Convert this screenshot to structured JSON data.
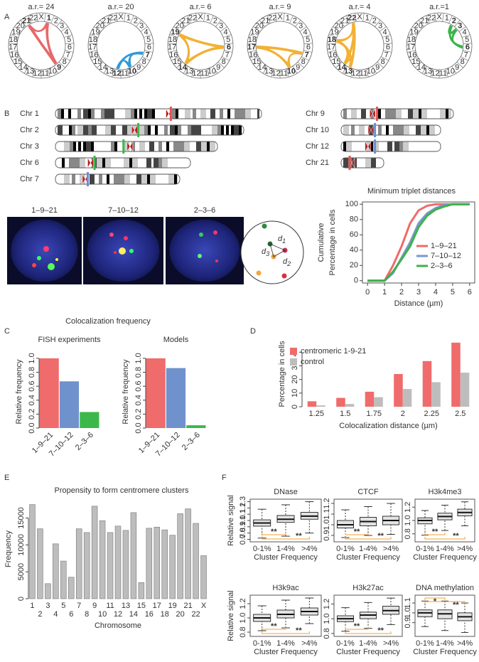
{
  "panel_labels": [
    "A",
    "B",
    "C",
    "D",
    "E",
    "F"
  ],
  "chromosomes": [
    "1",
    "2",
    "3",
    "4",
    "5",
    "6",
    "7",
    "8",
    "9",
    "10",
    "11",
    "12",
    "13",
    "14",
    "15",
    "16",
    "17",
    "18",
    "19",
    "20",
    "21",
    "22",
    "X"
  ],
  "highlight_color": "#c1272d",
  "circos": [
    {
      "label": "a.r.= 24",
      "highlight": [
        "1",
        "9",
        "21"
      ],
      "color": "#e8686a"
    },
    {
      "label": "a.r.= 20",
      "highlight": [
        "7",
        "10",
        "12"
      ],
      "color": "#2e9bd6"
    },
    {
      "label": "a.r.= 6",
      "highlight": [
        "6",
        "14",
        "19"
      ],
      "color": "#f2b134"
    },
    {
      "label": "a.r.= 9",
      "highlight": [
        "7",
        "10",
        "17"
      ],
      "color": "#f2b134"
    },
    {
      "label": "a.r.= 4",
      "highlight": [
        "13",
        "14",
        "18",
        "22"
      ],
      "color": "#f2b134"
    },
    {
      "label": "a.r.=1",
      "highlight": [
        "2",
        "3",
        "6"
      ],
      "color": "#39b54a"
    }
  ],
  "ideograms": [
    {
      "label": "Chr 1",
      "marker": "#e8504f"
    },
    {
      "label": "Chr 2",
      "marker": "#3cb84a"
    },
    {
      "label": "Chr 3",
      "marker": "#3cb84a"
    },
    {
      "label": "Chr 6",
      "marker": "#3cb84a"
    },
    {
      "label": "Chr 7",
      "marker": "#6b8fd0"
    },
    {
      "label": "Chr 9",
      "marker": "#e8504f"
    },
    {
      "label": "Chr 10",
      "marker": "#6b8fd0"
    },
    {
      "label": "Chr 12",
      "marker": "#6b8fd0"
    },
    {
      "label": "Chr 21",
      "marker": "#e8504f"
    }
  ],
  "images": [
    {
      "label": "1–9–21"
    },
    {
      "label": "7–10–12"
    },
    {
      "label": "2–3–6"
    }
  ],
  "diagram": {
    "labels": [
      {
        "text": "d",
        "sub": "1"
      },
      {
        "text": "d",
        "sub": "2"
      },
      {
        "text": "d",
        "sub": "3"
      }
    ]
  },
  "chart_data": [
    {
      "type": "line",
      "title": "Minimum triplet distances",
      "xlabel": "Distance (µm)",
      "ylabel": [
        "Cumulative",
        "Percentage in cells"
      ],
      "x": [
        0,
        1,
        1.5,
        2,
        2.5,
        3,
        3.5,
        4,
        4.5,
        5,
        5.5,
        6
      ],
      "series": [
        {
          "name": "1–9–21",
          "color": "#ef6a6a",
          "values": [
            0,
            0,
            20,
            45,
            75,
            92,
            98,
            100,
            100,
            100,
            100,
            100
          ]
        },
        {
          "name": "7–10–12",
          "color": "#7a96d0",
          "values": [
            0,
            0,
            10,
            30,
            50,
            75,
            88,
            95,
            99,
            100,
            100,
            100
          ]
        },
        {
          "name": "2–3–6",
          "color": "#3db34a",
          "values": [
            0,
            0,
            12,
            28,
            45,
            70,
            85,
            93,
            97,
            100,
            100,
            100
          ]
        }
      ],
      "xlim": [
        -0.3,
        6.3
      ],
      "xticks": [
        0,
        1,
        2,
        3,
        4,
        5,
        6
      ],
      "ylim": [
        -3,
        103
      ],
      "yticks": [
        0,
        20,
        40,
        60,
        80,
        100
      ],
      "legend": "right"
    },
    {
      "type": "bar",
      "title": "Colocalization frequency",
      "subtitle": "FISH experiments",
      "ylabel": "Relative frequency",
      "categories": [
        "1–9–21",
        "7–10–12",
        "2–3–6"
      ],
      "values": [
        1.0,
        0.67,
        0.23
      ],
      "colors": [
        "#f06b6b",
        "#7092cc",
        "#3cb84a"
      ],
      "xtick_rotation": -45,
      "ylim": [
        0,
        1.04
      ],
      "yticks": [
        {
          "value": 0,
          "label": "0.0"
        },
        0.2,
        0.4,
        0.6,
        0.8,
        {
          "value": 1,
          "label": "1.0"
        }
      ]
    },
    {
      "type": "bar",
      "subtitle": "Models",
      "ylabel": "Relative frequency",
      "categories": [
        "1–9–21",
        "7–10–12",
        "2–3–6"
      ],
      "values": [
        1.0,
        0.86,
        0.04
      ],
      "colors": [
        "#f06b6b",
        "#7092cc",
        "#3cb84a"
      ],
      "xtick_rotation": -45,
      "ylim": [
        0,
        1.04
      ],
      "yticks": [
        {
          "value": 0,
          "label": "0.0"
        },
        0.2,
        0.4,
        0.6,
        0.8,
        {
          "value": 1,
          "label": "1.0"
        }
      ]
    },
    {
      "type": "bar",
      "ylabel": "Percentage in cells",
      "xlabel": "Colocalization distance (µm)",
      "categories": [
        "1.25",
        "1.5",
        "1.75",
        "2",
        "2.25",
        "2.5"
      ],
      "series": [
        {
          "name": "centromeric 1-9-21",
          "color": "#f06b6b",
          "values": [
            4,
            6.5,
            11,
            24,
            33.5,
            47
          ]
        },
        {
          "name": "control",
          "color": "#bdbdbd",
          "values": [
            1,
            2,
            7,
            13,
            18,
            25
          ]
        }
      ],
      "ylim": [
        0,
        48
      ],
      "yticks": [
        0,
        10,
        20,
        30,
        40
      ],
      "legend": "top-left"
    },
    {
      "type": "bar",
      "title": "Propensity to form centromere clusters",
      "ylabel": "Frequency",
      "xlabel": "Chromosome",
      "categories": [
        "1",
        "2",
        "3",
        "4",
        "5",
        "6",
        "7",
        "8",
        "9",
        "10",
        "11",
        "12",
        "13",
        "14",
        "15",
        "16",
        "17",
        "18",
        "19",
        "20",
        "21",
        "22",
        "X"
      ],
      "values": [
        17500,
        13000,
        2800,
        10200,
        7000,
        4000,
        13000,
        12300,
        17200,
        14500,
        12300,
        13500,
        12700,
        16000,
        3000,
        13100,
        13300,
        12800,
        11800,
        15800,
        16700,
        14000,
        8000
      ],
      "color": "#bdbdbd",
      "xtick_rows": 2,
      "ylim": [
        0,
        18500
      ],
      "yticks": [
        0,
        5000,
        10000,
        15000
      ]
    },
    {
      "type": "box",
      "title": "DNase",
      "ylabel": "Relative  signal",
      "xlabel": "Cluster Frequency",
      "categories": [
        "0-1%",
        "1-4%",
        ">4%"
      ],
      "boxes": [
        {
          "whislo": 0.72,
          "q1": 0.91,
          "med": 0.96,
          "q3": 1.01,
          "whishi": 1.18
        },
        {
          "whislo": 0.75,
          "q1": 0.97,
          "med": 1.02,
          "q3": 1.08,
          "whishi": 1.25
        },
        {
          "whislo": 0.8,
          "q1": 1.02,
          "med": 1.07,
          "q3": 1.13,
          "whishi": 1.3
        }
      ],
      "color": "#e3e3e3",
      "annotations": [
        "**",
        "**"
      ],
      "annotation_position": "bottom",
      "annotation_color": "#f0a030",
      "ylim": [
        0.66,
        1.34
      ],
      "yticks": [
        0.7,
        0.8,
        0.9,
        {
          "value": 1,
          "label": "1.0"
        },
        1.1,
        1.2,
        1.3
      ]
    },
    {
      "type": "box",
      "title": "CTCF",
      "xlabel": "Cluster Frequency",
      "categories": [
        "0-1%",
        "1-4%",
        ">4%"
      ],
      "boxes": [
        {
          "whislo": 0.88,
          "q1": 0.97,
          "med": 1.0,
          "q3": 1.04,
          "whishi": 1.14
        },
        {
          "whislo": 0.9,
          "q1": 0.99,
          "med": 1.03,
          "q3": 1.07,
          "whishi": 1.17
        },
        {
          "whislo": 0.91,
          "q1": 1.0,
          "med": 1.04,
          "q3": 1.08,
          "whishi": 1.2
        }
      ],
      "color": "#e3e3e3",
      "annotations": [
        "**",
        "**"
      ],
      "annotation_position": "bottom",
      "annotation_color": "#f0a030",
      "ylim": [
        0.84,
        1.24
      ],
      "yticks": [
        0.9,
        {
          "value": 1,
          "label": "1.0"
        },
        1.1,
        1.2
      ]
    },
    {
      "type": "box",
      "title": "H3k4me3",
      "xlabel": "Cluster Frequency",
      "categories": [
        "0-1%",
        "1-4%",
        ">4%"
      ],
      "boxes": [
        {
          "whislo": 0.78,
          "q1": 0.95,
          "med": 1.0,
          "q3": 1.04,
          "whishi": 1.15
        },
        {
          "whislo": 0.85,
          "q1": 1.01,
          "med": 1.06,
          "q3": 1.11,
          "whishi": 1.23
        },
        {
          "whislo": 0.92,
          "q1": 1.07,
          "med": 1.12,
          "q3": 1.17,
          "whishi": 1.28
        }
      ],
      "color": "#e3e3e3",
      "annotations": [
        "**",
        "**"
      ],
      "annotation_position": "bottom",
      "annotation_color": "#f0a030",
      "ylim": [
        0.68,
        1.32
      ],
      "yticks": [
        0.8,
        {
          "value": 1,
          "label": "1.0"
        },
        1.2
      ]
    },
    {
      "type": "box",
      "title": "H3k9ac",
      "ylabel": "Relative  signal",
      "xlabel": "Cluster Frequency",
      "categories": [
        "0-1%",
        "1-4%",
        ">4%"
      ],
      "boxes": [
        {
          "whislo": 0.82,
          "q1": 0.95,
          "med": 1.0,
          "q3": 1.05,
          "whishi": 1.17
        },
        {
          "whislo": 0.86,
          "q1": 1.0,
          "med": 1.05,
          "q3": 1.11,
          "whishi": 1.25
        },
        {
          "whislo": 0.92,
          "q1": 1.04,
          "med": 1.09,
          "q3": 1.14,
          "whishi": 1.28
        }
      ],
      "color": "#e3e3e3",
      "annotations": [
        "**",
        "**"
      ],
      "annotation_position": "bottom",
      "annotation_color": "#f0a030",
      "ylim": [
        0.74,
        1.32
      ],
      "yticks": [
        0.8,
        {
          "value": 1,
          "label": "1.0"
        },
        1.2
      ]
    },
    {
      "type": "box",
      "title": "H3k27ac",
      "xlabel": "Cluster Frequency",
      "categories": [
        "0-1%",
        "1-4%",
        ">4%"
      ],
      "boxes": [
        {
          "whislo": 0.83,
          "q1": 0.96,
          "med": 1.0,
          "q3": 1.04,
          "whishi": 1.15
        },
        {
          "whislo": 0.87,
          "q1": 1.0,
          "med": 1.05,
          "q3": 1.09,
          "whishi": 1.22
        },
        {
          "whislo": 0.92,
          "q1": 1.06,
          "med": 1.11,
          "q3": 1.17,
          "whishi": 1.28
        }
      ],
      "color": "#e3e3e3",
      "annotations": [
        "**",
        "**"
      ],
      "annotation_position": "bottom",
      "annotation_color": "#f0a030",
      "ylim": [
        0.76,
        1.32
      ],
      "yticks": [
        0.8,
        {
          "value": 1,
          "label": "1.0"
        },
        1.2
      ]
    },
    {
      "type": "box",
      "title": "DNA methylation",
      "xlabel": "Cluster Frequency",
      "categories": [
        "0-1%",
        "1-4%",
        ">4%"
      ],
      "boxes": [
        {
          "whislo": 0.86,
          "q1": 0.96,
          "med": 1.0,
          "q3": 1.03,
          "whishi": 1.12
        },
        {
          "whislo": 0.82,
          "q1": 0.94,
          "med": 0.99,
          "q3": 1.03,
          "whishi": 1.12
        },
        {
          "whislo": 0.8,
          "q1": 0.92,
          "med": 0.96,
          "q3": 1.0,
          "whishi": 1.1
        }
      ],
      "color": "#e3e3e3",
      "annotations": [
        "*",
        "**"
      ],
      "annotation_position": "top",
      "annotation_color": "#f0a030",
      "ylim": [
        0.76,
        1.18
      ],
      "yticks": [
        0.9,
        {
          "value": 1,
          "label": "1.0"
        },
        1.1
      ]
    }
  ]
}
